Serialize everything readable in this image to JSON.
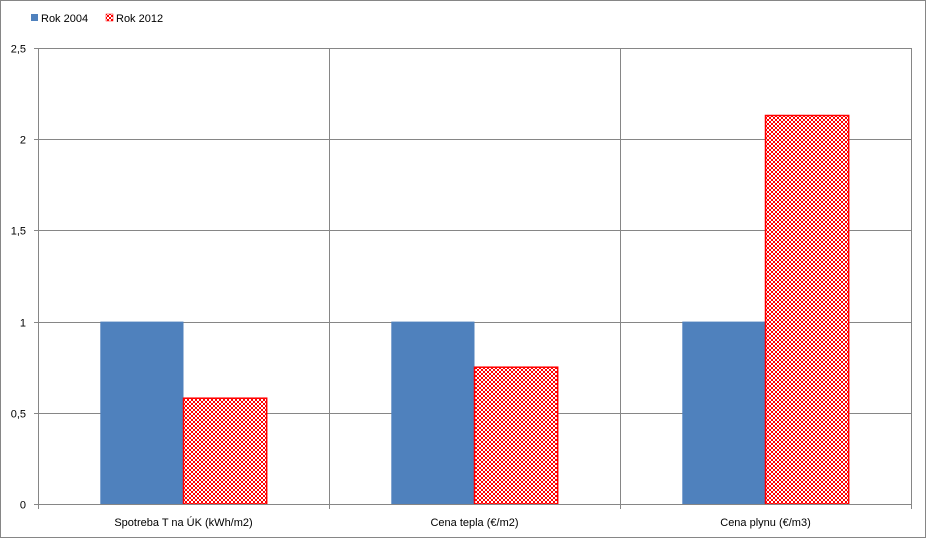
{
  "chart_data": {
    "type": "bar",
    "categories": [
      "Spotreba T na ÚK (kWh/m2)",
      "Cena tepla (€/m2)",
      "Cena plynu (€/m3)"
    ],
    "series": [
      {
        "name": "Rok 2004",
        "values": [
          1.0,
          1.0,
          1.0
        ],
        "color": "#4F81BD",
        "pattern": "solid"
      },
      {
        "name": "Rok 2012",
        "values": [
          0.58,
          0.75,
          2.13
        ],
        "color": "#FF0000",
        "pattern": "checker"
      }
    ],
    "yticks": [
      "0",
      "0,5",
      "1",
      "1,5",
      "2",
      "2,5"
    ],
    "ylim": [
      0,
      2.5
    ],
    "grid": true,
    "legend_position": "top-left"
  }
}
